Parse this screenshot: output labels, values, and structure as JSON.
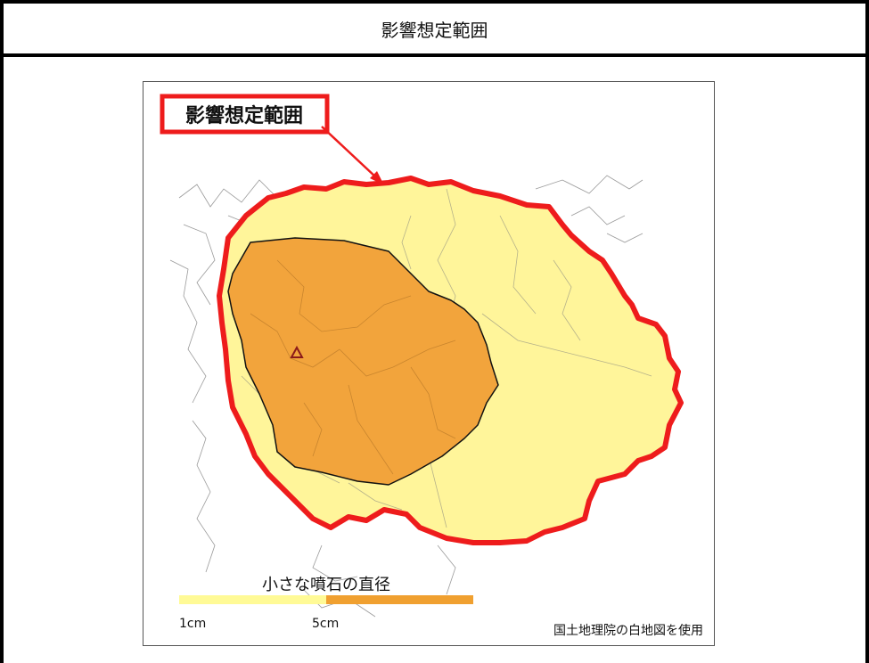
{
  "header": {
    "title": "影響想定範囲"
  },
  "map": {
    "callout_label": "影響想定範囲",
    "legend": {
      "title": "小さな噴石の直径",
      "ticks": [
        "1cm",
        "5cm"
      ],
      "colors": [
        "#fffa96",
        "#f0a030"
      ]
    },
    "credit": "国土地理院の白地図を使用",
    "icons": [
      "volcano-vent-triangle-icon"
    ],
    "colors": {
      "boundary": "#ee1c1c",
      "outer_zone": "#fff59a",
      "inner_zone": "#f2a43c"
    }
  }
}
